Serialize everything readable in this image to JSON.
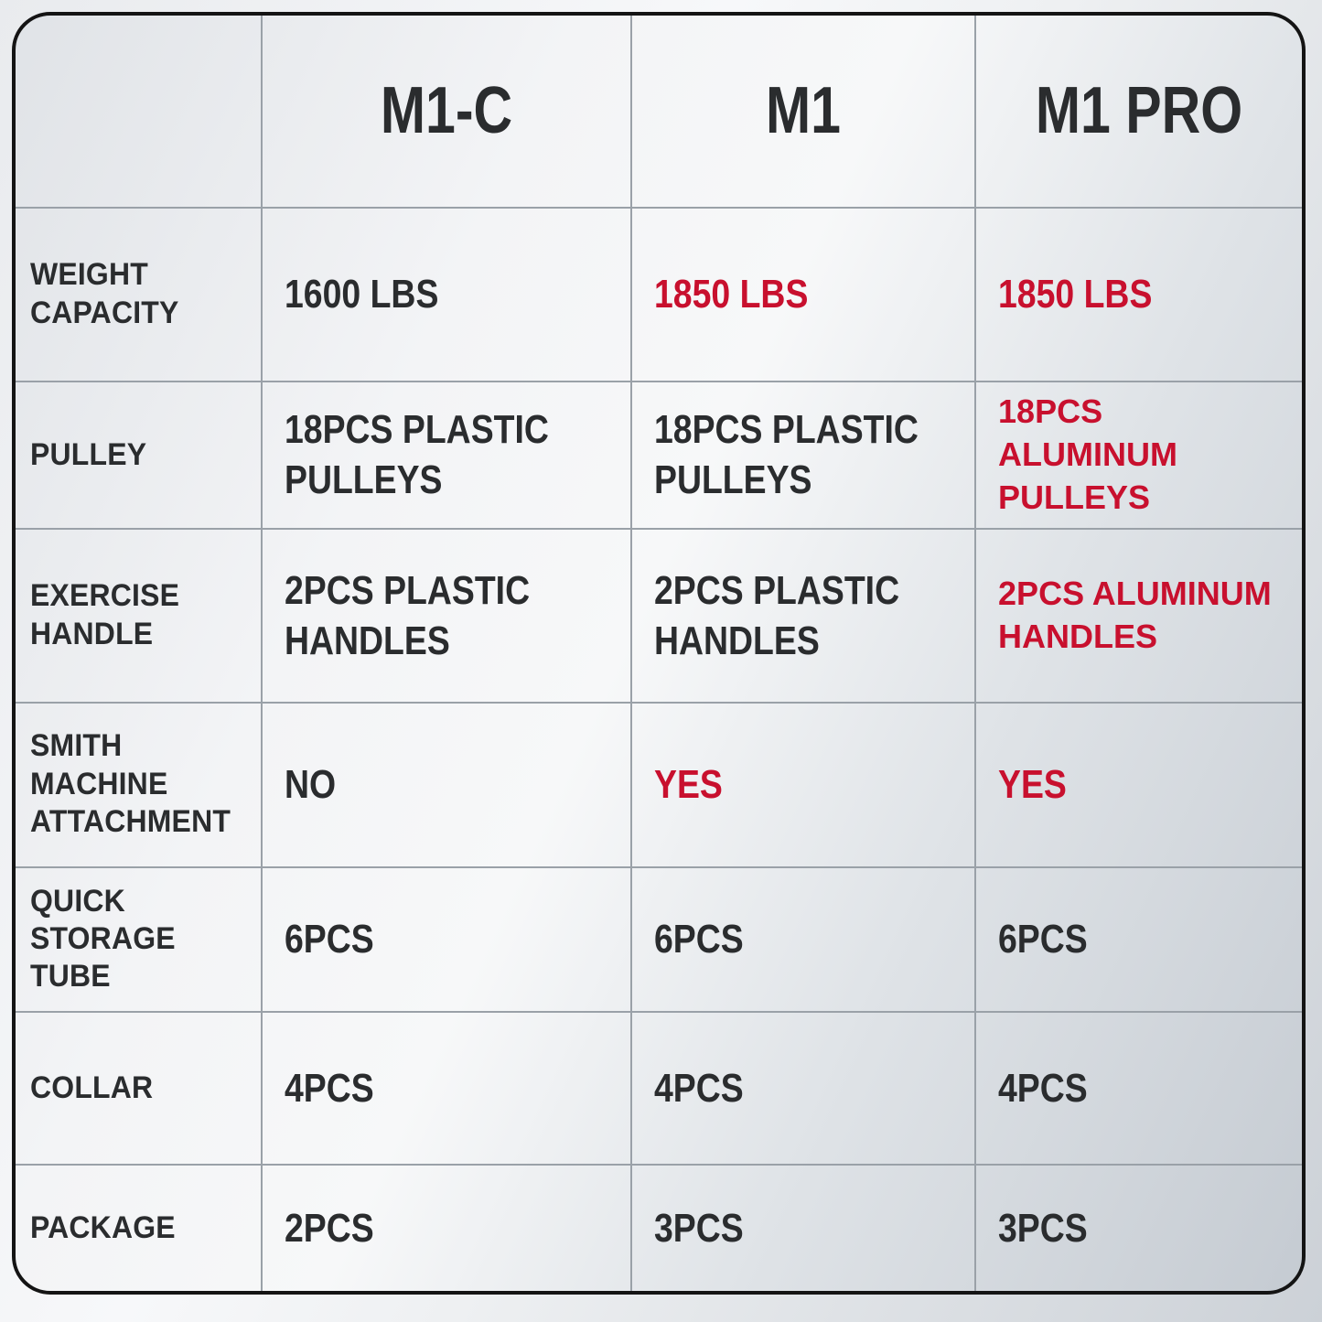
{
  "theme": {
    "highlight_red": "#c8102e",
    "text_dark": "#2a2c2e",
    "grid_line": "#9aa1a8",
    "frame_border": "#141414"
  },
  "table": {
    "headers": [
      {
        "label": ""
      },
      {
        "label": "M1-C"
      },
      {
        "label": "M1"
      },
      {
        "label": "M1 PRO"
      }
    ],
    "rows": [
      {
        "label": "WEIGHT\nCAPACITY",
        "cells": [
          {
            "text": "1600 LBS",
            "highlight": false,
            "wide": false
          },
          {
            "text": "1850 LBS",
            "highlight": true,
            "wide": false
          },
          {
            "text": "1850 LBS",
            "highlight": true,
            "wide": false
          }
        ]
      },
      {
        "label": "PULLEY",
        "cells": [
          {
            "text": "18PCS PLASTIC\nPULLEYS",
            "highlight": false,
            "wide": false
          },
          {
            "text": "18PCS PLASTIC\nPULLEYS",
            "highlight": false,
            "wide": false
          },
          {
            "text": "18PCS\nALUMINUM PULLEYS",
            "highlight": true,
            "wide": true
          }
        ]
      },
      {
        "label": "EXERCISE\nHANDLE",
        "cells": [
          {
            "text": "2PCS PLASTIC\nHANDLES",
            "highlight": false,
            "wide": false
          },
          {
            "text": "2PCS PLASTIC\nHANDLES",
            "highlight": false,
            "wide": false
          },
          {
            "text": "2PCS ALUMINUM\nHANDLES",
            "highlight": true,
            "wide": true
          }
        ]
      },
      {
        "label": "SMITH MACHINE\nATTACHMENT",
        "cells": [
          {
            "text": "NO",
            "highlight": false,
            "wide": false
          },
          {
            "text": "YES",
            "highlight": true,
            "wide": false
          },
          {
            "text": "YES",
            "highlight": true,
            "wide": false
          }
        ]
      },
      {
        "label": "QUICK\nSTORAGE TUBE",
        "cells": [
          {
            "text": "6PCS",
            "highlight": false,
            "wide": false
          },
          {
            "text": "6PCS",
            "highlight": false,
            "wide": false
          },
          {
            "text": "6PCS",
            "highlight": false,
            "wide": false
          }
        ]
      },
      {
        "label": "COLLAR",
        "cells": [
          {
            "text": "4PCS",
            "highlight": false,
            "wide": false
          },
          {
            "text": "4PCS",
            "highlight": false,
            "wide": false
          },
          {
            "text": "4PCS",
            "highlight": false,
            "wide": false
          }
        ]
      },
      {
        "label": "PACKAGE",
        "cells": [
          {
            "text": "2PCS",
            "highlight": false,
            "wide": false
          },
          {
            "text": "3PCS",
            "highlight": false,
            "wide": false
          },
          {
            "text": "3PCS",
            "highlight": false,
            "wide": false
          }
        ]
      }
    ]
  }
}
